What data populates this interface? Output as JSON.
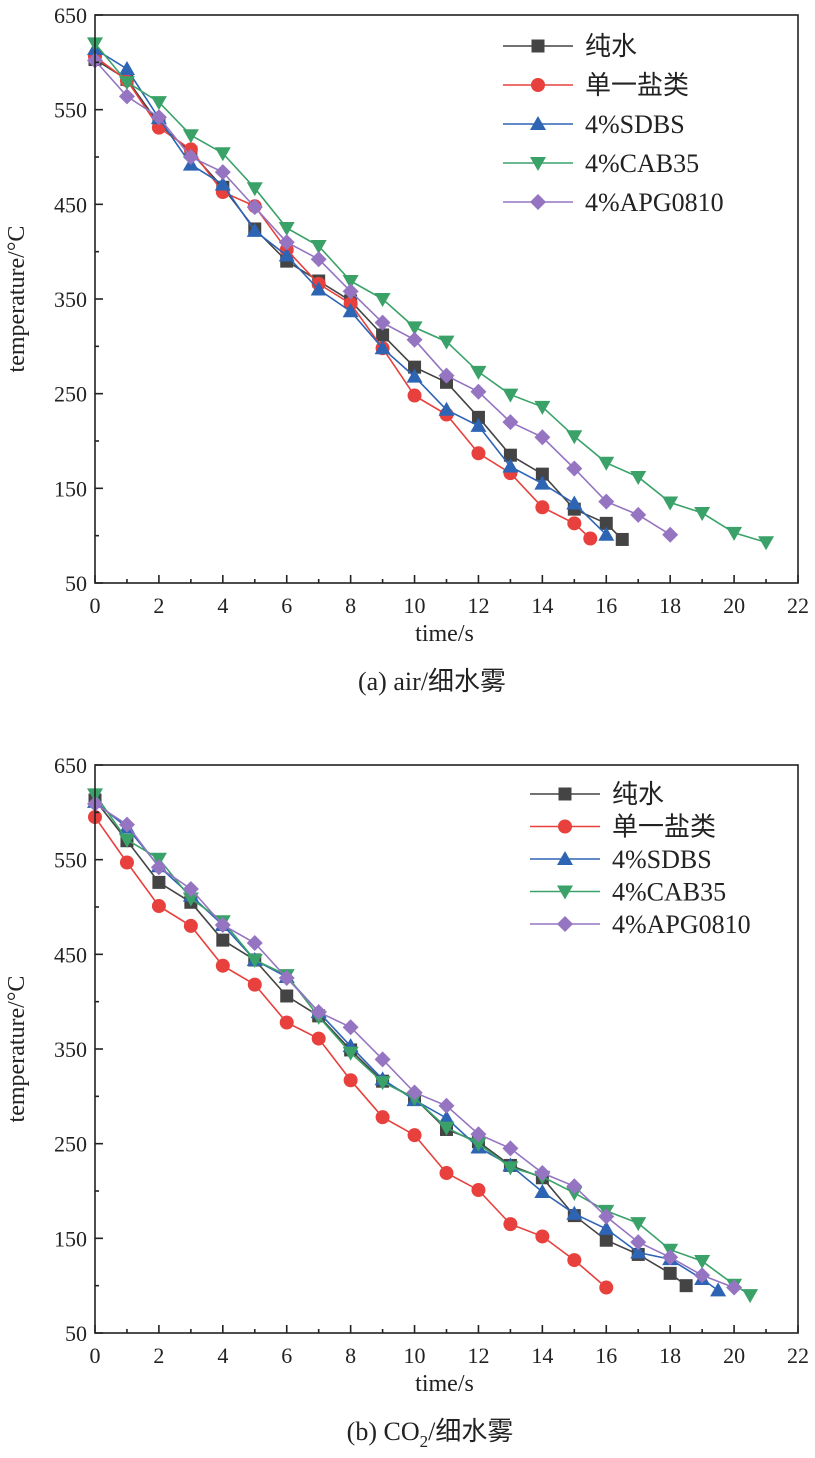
{
  "chart_data": [
    {
      "type": "line",
      "id": "a",
      "caption": "(a) air/细水雾",
      "xlabel": "time/s",
      "ylabel": "temperature/°C",
      "xlim": [
        0,
        22
      ],
      "ylim": [
        50,
        650
      ],
      "xticks": [
        "0",
        "2",
        "4",
        "6",
        "8",
        "10",
        "12",
        "14",
        "16",
        "18",
        "20",
        "22"
      ],
      "yticks": [
        "50",
        "150",
        "250",
        "350",
        "450",
        "550",
        "650"
      ],
      "legend_position": "top-right",
      "series": [
        {
          "name": "纯水",
          "color": "#444444",
          "marker": "square",
          "x": [
            0,
            1,
            2,
            3,
            4,
            5,
            6,
            7,
            8,
            9,
            10,
            11,
            12,
            13,
            14,
            15,
            16,
            16.5
          ],
          "y": [
            603,
            582,
            535,
            505,
            468,
            424,
            390,
            369,
            348,
            312,
            278,
            262,
            225,
            185,
            165,
            128,
            113,
            96
          ]
        },
        {
          "name": "单一盐类",
          "color": "#e8403c",
          "marker": "circle",
          "x": [
            0,
            1,
            2,
            3,
            4,
            5,
            6,
            7,
            8,
            9,
            10,
            11,
            12,
            13,
            14,
            15,
            15.5
          ],
          "y": [
            606,
            581,
            531,
            508,
            463,
            448,
            402,
            366,
            345,
            298,
            248,
            228,
            187,
            166,
            130,
            113,
            97
          ]
        },
        {
          "name": "4%SDBS",
          "color": "#2e64b4",
          "marker": "triangle-up",
          "x": [
            0,
            1,
            2,
            3,
            4,
            5,
            6,
            7,
            8,
            9,
            10,
            11,
            12,
            13,
            14,
            15,
            16
          ],
          "y": [
            614,
            593,
            541,
            492,
            471,
            422,
            396,
            360,
            337,
            298,
            268,
            233,
            216,
            173,
            155,
            134,
            101
          ]
        },
        {
          "name": "4%CAB35",
          "color": "#3aa268",
          "marker": "triangle-down",
          "x": [
            0,
            1,
            2,
            3,
            4,
            5,
            6,
            7,
            8,
            9,
            10,
            11,
            12,
            13,
            14,
            15,
            16,
            17,
            18,
            19,
            20,
            21
          ],
          "y": [
            620,
            579,
            558,
            523,
            504,
            467,
            425,
            406,
            369,
            350,
            320,
            305,
            273,
            249,
            236,
            205,
            177,
            162,
            135,
            124,
            103,
            93
          ]
        },
        {
          "name": "4%APG0810",
          "color": "#9575c2",
          "marker": "diamond",
          "x": [
            0,
            1,
            2,
            3,
            4,
            5,
            6,
            7,
            8,
            9,
            10,
            11,
            12,
            13,
            14,
            15,
            16,
            17,
            18
          ],
          "y": [
            602,
            564,
            542,
            500,
            484,
            447,
            410,
            392,
            358,
            325,
            307,
            269,
            252,
            220,
            204,
            171,
            136,
            122,
            101
          ]
        }
      ]
    },
    {
      "type": "line",
      "id": "b",
      "caption_prefix": "(b) CO",
      "caption_subscript": "2",
      "caption_suffix": "/细水雾",
      "xlabel": "time/s",
      "ylabel": "temperature/°C",
      "xlim": [
        0,
        22
      ],
      "ylim": [
        50,
        650
      ],
      "xticks": [
        "0",
        "2",
        "4",
        "6",
        "8",
        "10",
        "12",
        "14",
        "16",
        "18",
        "20",
        "22"
      ],
      "yticks": [
        "50",
        "150",
        "250",
        "350",
        "450",
        "550",
        "650"
      ],
      "legend_position": "top-right",
      "series": [
        {
          "name": "纯水",
          "color": "#444444",
          "marker": "square",
          "x": [
            0,
            1,
            2,
            3,
            4,
            5,
            6,
            7,
            8,
            9,
            10,
            11,
            12,
            13,
            14,
            15,
            16,
            17,
            18,
            18.5
          ],
          "y": [
            613,
            570,
            526,
            505,
            465,
            444,
            406,
            385,
            349,
            316,
            298,
            265,
            252,
            227,
            214,
            174,
            148,
            133,
            113,
            100
          ]
        },
        {
          "name": "单一盐类",
          "color": "#e8403c",
          "marker": "circle",
          "x": [
            0,
            1,
            2,
            3,
            4,
            5,
            6,
            7,
            8,
            9,
            10,
            11,
            12,
            13,
            14,
            15,
            16
          ],
          "y": [
            595,
            547,
            501,
            480,
            438,
            418,
            378,
            361,
            317,
            278,
            259,
            219,
            201,
            165,
            152,
            127,
            98
          ]
        },
        {
          "name": "4%SDBS",
          "color": "#2e64b4",
          "marker": "triangle-up",
          "x": [
            0,
            1,
            2,
            3,
            4,
            5,
            6,
            7,
            8,
            9,
            10,
            11,
            12,
            13,
            14,
            15,
            16,
            17,
            18,
            19,
            19.5
          ],
          "y": [
            611,
            584,
            543,
            512,
            481,
            444,
            426,
            389,
            353,
            318,
            296,
            277,
            246,
            227,
            199,
            176,
            160,
            135,
            128,
            107,
            95
          ]
        },
        {
          "name": "4%CAB35",
          "color": "#3aa268",
          "marker": "triangle-down",
          "x": [
            0,
            1,
            2,
            3,
            4,
            5,
            6,
            7,
            8,
            9,
            10,
            11,
            12,
            13,
            14,
            15,
            16,
            17,
            18,
            19,
            20,
            20.5
          ],
          "y": [
            619,
            571,
            551,
            509,
            485,
            444,
            428,
            384,
            346,
            315,
            298,
            267,
            250,
            225,
            215,
            198,
            179,
            166,
            138,
            126,
            101,
            90
          ]
        },
        {
          "name": "4%APG0810",
          "color": "#9575c2",
          "marker": "diamond",
          "x": [
            0,
            1,
            2,
            3,
            4,
            5,
            6,
            7,
            8,
            9,
            10,
            11,
            12,
            13,
            14,
            15,
            16,
            17,
            18,
            19,
            20
          ],
          "y": [
            609,
            587,
            542,
            519,
            481,
            462,
            425,
            389,
            373,
            339,
            304,
            290,
            260,
            245,
            219,
            205,
            173,
            146,
            130,
            111,
            98
          ]
        }
      ]
    }
  ]
}
